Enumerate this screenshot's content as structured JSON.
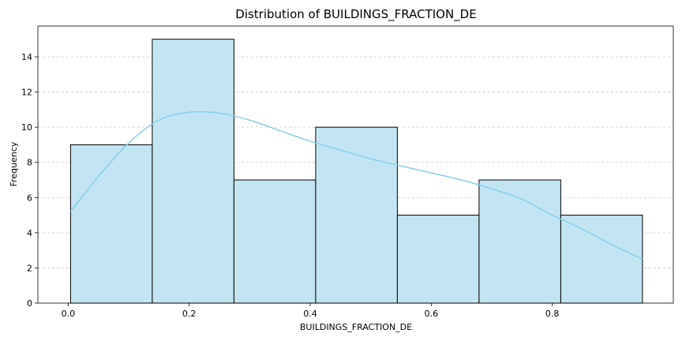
{
  "chart_data": {
    "type": "bar",
    "title": "Distribution of BUILDINGS_FRACTION_DE",
    "xlabel": "BUILDINGS_FRACTION_DE",
    "ylabel": "Frequency",
    "xlim": [
      -0.05,
      1.0
    ],
    "ylim": [
      0,
      15.75
    ],
    "x_ticks": [
      0.0,
      0.2,
      0.4,
      0.6,
      0.8
    ],
    "x_tick_labels": [
      "0.0",
      "0.2",
      "0.4",
      "0.6",
      "0.8"
    ],
    "y_ticks": [
      0,
      2,
      4,
      6,
      8,
      10,
      12,
      14
    ],
    "y_tick_labels": [
      "0",
      "2",
      "4",
      "6",
      "8",
      "10",
      "12",
      "14"
    ],
    "grid": "horizontal dashed",
    "bins": [
      {
        "start": 0.004,
        "end": 0.139,
        "count": 9
      },
      {
        "start": 0.139,
        "end": 0.274,
        "count": 15
      },
      {
        "start": 0.274,
        "end": 0.409,
        "count": 7
      },
      {
        "start": 0.409,
        "end": 0.544,
        "count": 10
      },
      {
        "start": 0.544,
        "end": 0.679,
        "count": 5
      },
      {
        "start": 0.679,
        "end": 0.814,
        "count": 7
      },
      {
        "start": 0.814,
        "end": 0.949,
        "count": 5
      }
    ],
    "kde": {
      "x": [
        0.004,
        0.05,
        0.1,
        0.15,
        0.2,
        0.25,
        0.3,
        0.35,
        0.4,
        0.45,
        0.5,
        0.55,
        0.6,
        0.65,
        0.7,
        0.75,
        0.8,
        0.85,
        0.9,
        0.949
      ],
      "y": [
        5.2,
        7.2,
        9.1,
        10.4,
        10.85,
        10.8,
        10.4,
        9.8,
        9.2,
        8.7,
        8.2,
        7.8,
        7.4,
        7.0,
        6.5,
        5.9,
        5.0,
        4.2,
        3.3,
        2.5
      ]
    },
    "colors": {
      "bar_fill": "#c3e5f3",
      "bar_edge": "#000000",
      "kde_line": "#87ceeb",
      "grid": "#c8c8c8"
    }
  }
}
